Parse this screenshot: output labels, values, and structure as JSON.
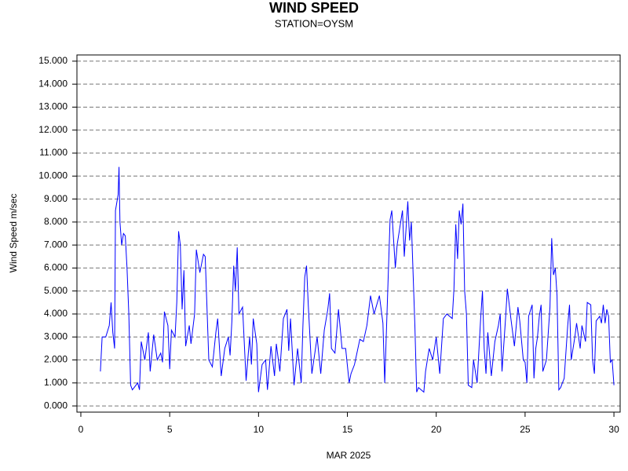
{
  "chart_data": {
    "type": "line",
    "title": "WIND SPEED",
    "subtitle": "STATION=OYSM",
    "y_label": "Wind Speed m/sec",
    "x_label": "MAR 2025",
    "xlim": [
      -0.22,
      30.35
    ],
    "xticks": [
      0,
      5,
      10,
      15,
      20,
      25,
      30
    ],
    "ylim": [
      -0.27,
      15.27
    ],
    "yticks": [
      {
        "value": 0,
        "label": "0.000"
      },
      {
        "value": 1,
        "label": "1.000"
      },
      {
        "value": 2,
        "label": "2.000"
      },
      {
        "value": 3,
        "label": "3.000"
      },
      {
        "value": 4,
        "label": "4.000"
      },
      {
        "value": 5,
        "label": "5.000"
      },
      {
        "value": 6,
        "label": "6.000"
      },
      {
        "value": 7,
        "label": "7.000"
      },
      {
        "value": 8,
        "label": "8.000"
      },
      {
        "value": 9,
        "label": "9.000"
      },
      {
        "value": 10,
        "label": "10.000"
      },
      {
        "value": 11,
        "label": "11.000"
      },
      {
        "value": 12,
        "label": "12.000"
      },
      {
        "value": 13,
        "label": "13.000"
      },
      {
        "value": 14,
        "label": "14.000"
      },
      {
        "value": 15,
        "label": "15.000"
      }
    ],
    "grid": true,
    "x": [
      1.1,
      1.2,
      1.4,
      1.6,
      1.7,
      1.8,
      1.9,
      1.95,
      2.1,
      2.15,
      2.2,
      2.3,
      2.4,
      2.5,
      2.6,
      2.7,
      2.8,
      2.9,
      3.0,
      3.2,
      3.3,
      3.4,
      3.6,
      3.8,
      3.9,
      4.1,
      4.3,
      4.5,
      4.6,
      4.7,
      4.9,
      5.0,
      5.1,
      5.3,
      5.4,
      5.5,
      5.6,
      5.7,
      5.8,
      5.9,
      6.1,
      6.2,
      6.4,
      6.5,
      6.7,
      6.9,
      7.0,
      7.2,
      7.4,
      7.6,
      7.7,
      7.9,
      8.1,
      8.3,
      8.4,
      8.5,
      8.6,
      8.7,
      8.8,
      8.9,
      9.1,
      9.3,
      9.5,
      9.6,
      9.7,
      9.9,
      10.0,
      10.2,
      10.4,
      10.5,
      10.7,
      10.9,
      11.0,
      11.2,
      11.4,
      11.6,
      11.7,
      11.8,
      12.0,
      12.2,
      12.4,
      12.5,
      12.6,
      12.7,
      12.8,
      13.0,
      13.3,
      13.5,
      13.7,
      13.9,
      14.0,
      14.1,
      14.3,
      14.5,
      14.7,
      14.9,
      15.1,
      15.2,
      15.4,
      15.7,
      15.9,
      16.1,
      16.3,
      16.5,
      16.8,
      17.0,
      17.1,
      17.2,
      17.4,
      17.5,
      17.7,
      17.8,
      18.1,
      18.2,
      18.4,
      18.5,
      18.6,
      18.8,
      18.9,
      19.0,
      19.3,
      19.4,
      19.6,
      19.8,
      20.0,
      20.2,
      20.4,
      20.6,
      20.9,
      21.0,
      21.1,
      21.2,
      21.3,
      21.4,
      21.5,
      21.6,
      21.7,
      21.8,
      22.0,
      22.1,
      22.3,
      22.5,
      22.6,
      22.7,
      22.8,
      22.9,
      23.1,
      23.3,
      23.5,
      23.6,
      23.7,
      23.9,
      24.0,
      24.2,
      24.4,
      24.6,
      24.7,
      24.9,
      25.0,
      25.1,
      25.2,
      25.4,
      25.5,
      25.6,
      25.7,
      25.8,
      25.9,
      26.0,
      26.2,
      26.4,
      26.5,
      26.6,
      26.7,
      26.8,
      26.9,
      27.0,
      27.1,
      27.2,
      27.4,
      27.5,
      27.6,
      27.8,
      27.9,
      28.1,
      28.2,
      28.4,
      28.5,
      28.7,
      28.8,
      28.9,
      29.0,
      29.2,
      29.3,
      29.4,
      29.5,
      29.6,
      29.7,
      29.8,
      29.9,
      30.0
    ],
    "series": [
      {
        "color": "#0000ff",
        "values": [
          1.5,
          3.0,
          3.0,
          3.5,
          4.5,
          3.2,
          2.5,
          8.5,
          9.2,
          10.4,
          8.0,
          7.0,
          7.5,
          7.4,
          6.0,
          4.0,
          0.9,
          0.7,
          0.8,
          1.0,
          0.7,
          2.8,
          2.0,
          3.2,
          1.5,
          3.1,
          2.0,
          2.3,
          1.9,
          4.1,
          3.5,
          1.6,
          3.3,
          3.0,
          4.5,
          7.6,
          7.0,
          4.2,
          5.9,
          2.6,
          3.5,
          2.7,
          4.0,
          6.8,
          5.8,
          6.6,
          6.5,
          2.0,
          1.7,
          3.2,
          3.8,
          1.3,
          2.5,
          3.0,
          2.2,
          3.7,
          6.1,
          5.0,
          6.9,
          4.0,
          4.3,
          1.1,
          3.0,
          1.8,
          3.8,
          2.7,
          0.6,
          1.8,
          2.0,
          0.7,
          2.6,
          1.3,
          2.7,
          1.5,
          3.8,
          4.2,
          2.4,
          3.8,
          0.9,
          2.5,
          1.0,
          3.5,
          5.6,
          6.1,
          4.4,
          1.4,
          3.0,
          1.4,
          3.3,
          4.2,
          4.9,
          2.5,
          2.3,
          4.2,
          2.5,
          2.5,
          1.0,
          1.4,
          1.8,
          2.9,
          2.8,
          3.5,
          4.8,
          4.0,
          4.8,
          3.6,
          1.0,
          3.3,
          8.1,
          8.5,
          6.0,
          7.0,
          8.5,
          6.5,
          8.9,
          7.2,
          8.0,
          3.5,
          0.6,
          0.8,
          0.6,
          1.5,
          2.5,
          2.0,
          3.0,
          1.4,
          3.8,
          4.0,
          3.8,
          5.1,
          7.9,
          6.4,
          8.5,
          7.9,
          8.8,
          5.0,
          4.0,
          0.9,
          0.8,
          2.0,
          1.0,
          3.8,
          5.0,
          2.5,
          1.4,
          3.2,
          1.3,
          2.8,
          3.5,
          4.0,
          1.5,
          3.8,
          5.1,
          3.8,
          2.6,
          4.3,
          3.7,
          2.0,
          1.9,
          1.0,
          3.9,
          4.4,
          1.2,
          2.5,
          3.0,
          3.9,
          4.4,
          1.5,
          2.0,
          4.3,
          7.3,
          5.7,
          6.0,
          4.8,
          0.7,
          0.8,
          1.0,
          1.2,
          3.5,
          4.4,
          2.0,
          3.0,
          3.6,
          2.5,
          3.5,
          2.8,
          4.5,
          4.4,
          2.0,
          1.4,
          3.7,
          3.9,
          3.6,
          4.4,
          3.6,
          4.2,
          3.9,
          1.9,
          2.0,
          0.9
        ]
      }
    ]
  }
}
